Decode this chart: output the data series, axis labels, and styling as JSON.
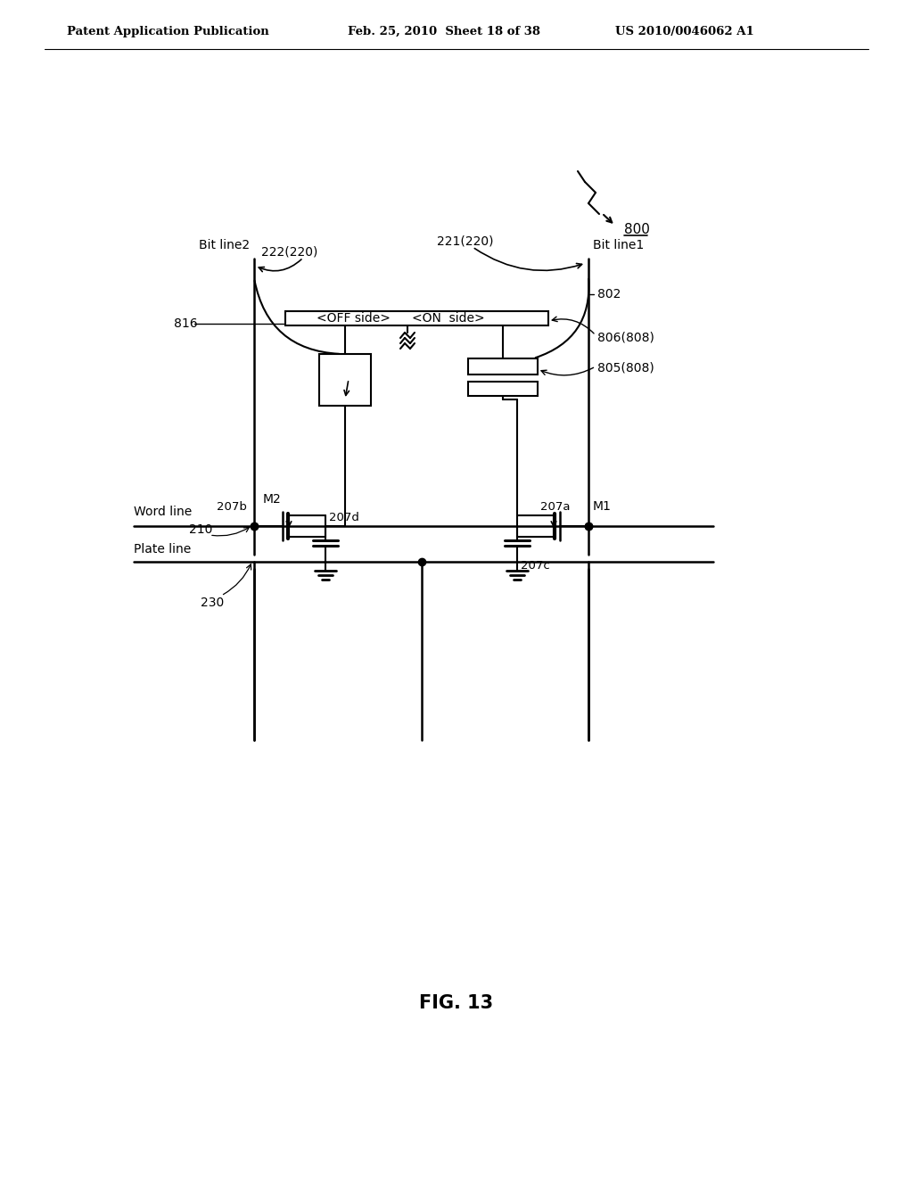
{
  "bg_color": "#ffffff",
  "header_left": "Patent Application Publication",
  "header_mid": "Feb. 25, 2010  Sheet 18 of 38",
  "header_right": "US 2010/0046062 A1",
  "fig_label": "FIG. 13",
  "title_ref": "800",
  "circuit_labels": {
    "bit_line2": "Bit line2",
    "bit_line1": "Bit line1",
    "label_222": "222(220)",
    "label_221": "221(220)",
    "label_816": "816",
    "label_802": "802",
    "label_806": "806(808)",
    "label_805": "805(808)",
    "label_M2": "M2",
    "label_M1": "M1",
    "label_207b": "207b",
    "label_207a": "207a",
    "label_207d": "207d",
    "label_207c": "207c",
    "label_210": "210",
    "label_230": "230",
    "word_line": "Word line",
    "plate_line": "Plate line",
    "off_side": "<OFF side>",
    "on_side": "<ON  side>"
  }
}
